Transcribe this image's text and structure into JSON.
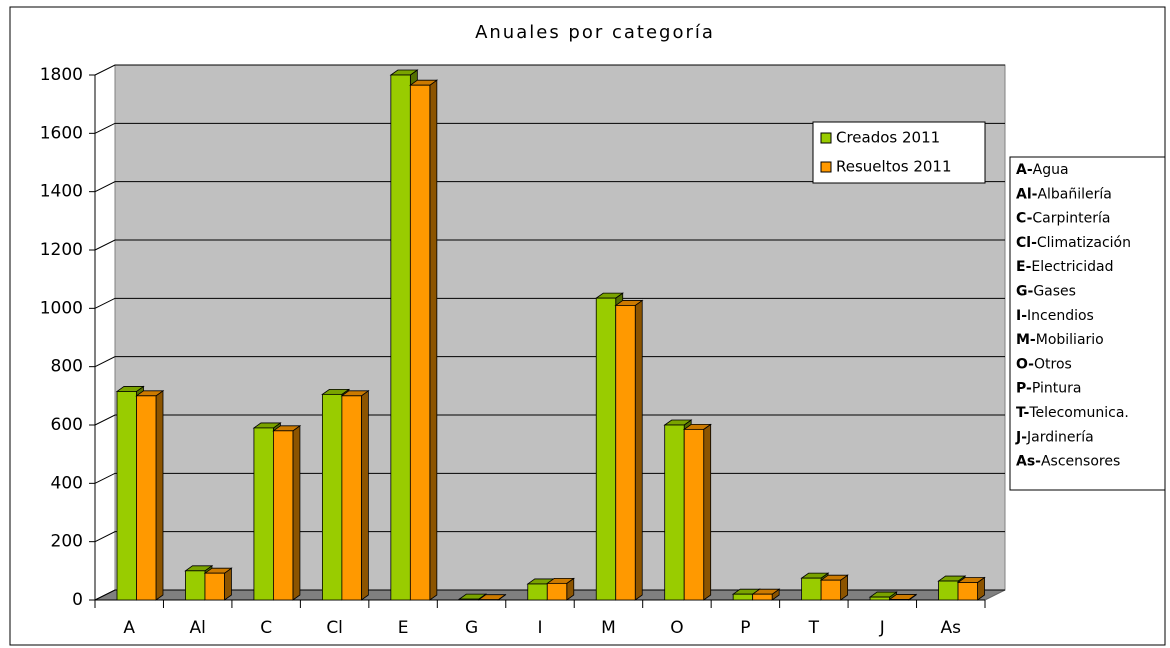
{
  "chart_data": {
    "type": "bar3d",
    "title": "Anuales por categoría",
    "categories": [
      "A",
      "Al",
      "C",
      "Cl",
      "E",
      "G",
      "I",
      "M",
      "O",
      "P",
      "T",
      "J",
      "As"
    ],
    "series": [
      {
        "name": "Creados 2011",
        "color": "#99cc00",
        "values": [
          715,
          100,
          590,
          705,
          1800,
          3,
          55,
          1035,
          600,
          20,
          75,
          10,
          65
        ]
      },
      {
        "name": "Resueltos 2011",
        "color": "#ff9900",
        "values": [
          700,
          92,
          580,
          700,
          1765,
          1,
          57,
          1010,
          585,
          20,
          68,
          2,
          60
        ]
      }
    ],
    "ylim": [
      0,
      1800
    ],
    "yticks": [
      0,
      200,
      400,
      600,
      800,
      1000,
      1200,
      1400,
      1600,
      1800
    ],
    "grid": true,
    "category_key": [
      {
        "code": "A-",
        "name": "Agua"
      },
      {
        "code": "Al-",
        "name": "Albañilería"
      },
      {
        "code": "C-",
        "name": "Carpintería"
      },
      {
        "code": "Cl-",
        "name": "Climatización"
      },
      {
        "code": "E-",
        "name": "Electricidad"
      },
      {
        "code": "G-",
        "name": "Gases"
      },
      {
        "code": "I-",
        "name": "Incendios"
      },
      {
        "code": "M-",
        "name": "Mobiliario"
      },
      {
        "code": "O-",
        "name": "Otros"
      },
      {
        "code": "P-",
        "name": "Pintura"
      },
      {
        "code": "T-",
        "name": "Telecomunica."
      },
      {
        "code": "J-",
        "name": "Jardinería"
      },
      {
        "code": "As-",
        "name": "Ascensores"
      }
    ]
  }
}
